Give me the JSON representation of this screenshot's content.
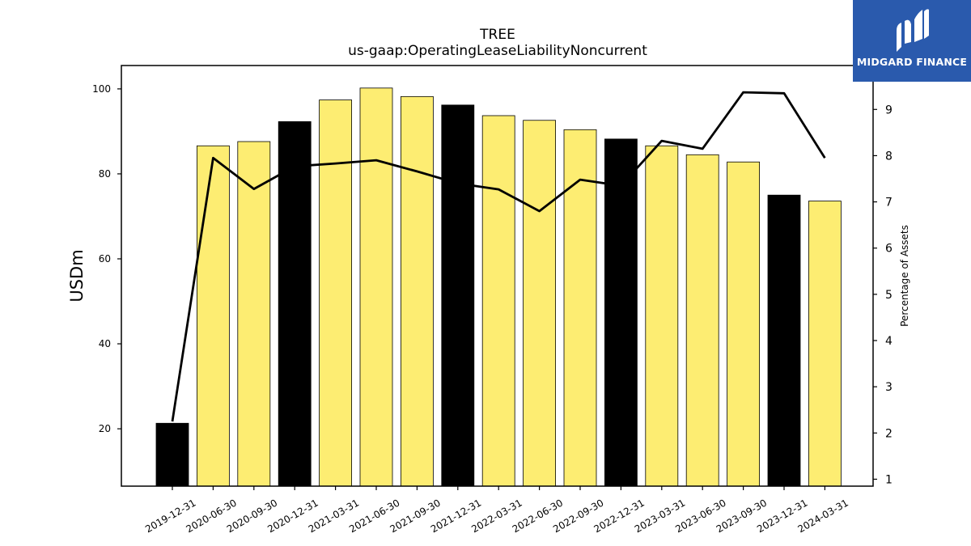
{
  "chart_data": {
    "type": "bar",
    "title": "TREE",
    "subtitle": "us-gaap:OperatingLeaseLiabilityNoncurrent",
    "ylabel": "USDm",
    "y2label": "Percentage of Assets",
    "categories": [
      "2019-12-31",
      "2020-06-30",
      "2020-09-30",
      "2020-12-31",
      "2021-03-31",
      "2021-06-30",
      "2021-09-30",
      "2021-12-31",
      "2022-03-31",
      "2022-06-30",
      "2022-09-30",
      "2022-12-31",
      "2023-03-31",
      "2023-06-30",
      "2023-09-30",
      "2023-12-31",
      "2024-03-31"
    ],
    "series": [
      {
        "values": [
          21.3,
          86.6,
          87.6,
          92.3,
          97.4,
          100.2,
          98.2,
          96.2,
          93.7,
          92.6,
          90.4,
          88.2,
          86.6,
          84.5,
          82.8,
          75.0,
          73.6
        ],
        "kind": "bar",
        "highlight": [
          true,
          false,
          false,
          true,
          false,
          false,
          false,
          true,
          false,
          false,
          false,
          true,
          false,
          false,
          false,
          true,
          false
        ]
      },
      {
        "values": [
          2.25,
          7.95,
          7.28,
          7.77,
          7.83,
          7.9,
          7.66,
          7.4,
          7.27,
          6.8,
          7.48,
          7.35,
          8.32,
          8.15,
          9.37,
          9.35,
          7.95
        ],
        "kind": "line",
        "axis": "right"
      }
    ],
    "ylim": [
      6.5,
      105.5
    ],
    "y2lim": [
      0.85,
      9.95
    ],
    "yticks": [
      "20",
      "40",
      "60",
      "80",
      "100"
    ],
    "y2ticks": [
      "1",
      "2",
      "3",
      "4",
      "5",
      "6",
      "7",
      "8",
      "9"
    ],
    "colors": {
      "bar": "#fded72",
      "bar_highlight": "#000000",
      "line": "#000000"
    }
  },
  "logo": {
    "text": "MIDGARD FINANCE",
    "background": "#2a5aad"
  }
}
